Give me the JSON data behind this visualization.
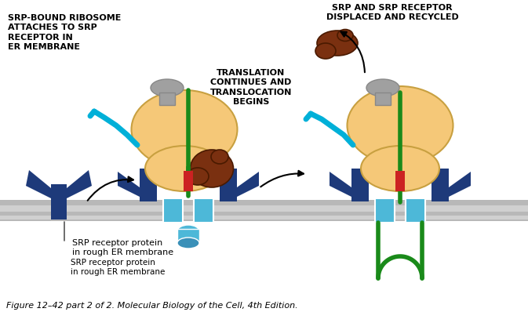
{
  "figure_caption": "Figure 12–42 part 2 of 2. Molecular Biology of the Cell, 4th Edition.",
  "label_srp_bound": "SRP-BOUND RIBOSOME\nATTACHES TO SRP\nRECEPTOR IN\nER MEMBRANE",
  "label_translation": "TRANSLATION\nCONTINUES AND\nTRANSLOCATION\nBEGINS",
  "label_srp_displaced": "SRP AND SRP RECEPTOR\nDISPLACED AND RECYCLED",
  "label_srp_receptor": "SRP receptor protein\nin rough ER membrane",
  "bg_color": "#ffffff",
  "membrane_color": "#b8b8b8",
  "ribosome_color": "#f5c878",
  "ribosome_outline": "#c8a040",
  "dark_blue": "#1e3a7a",
  "cyan_blue": "#4db8d8",
  "red_color": "#cc2222",
  "green_color": "#1a8a1a",
  "brown_color": "#7a3010",
  "gray_srp": "#a0a0a0",
  "cyan_rna": "#00b0d8",
  "fig_width": 6.73,
  "fig_height": 3.98,
  "dpi": 100
}
